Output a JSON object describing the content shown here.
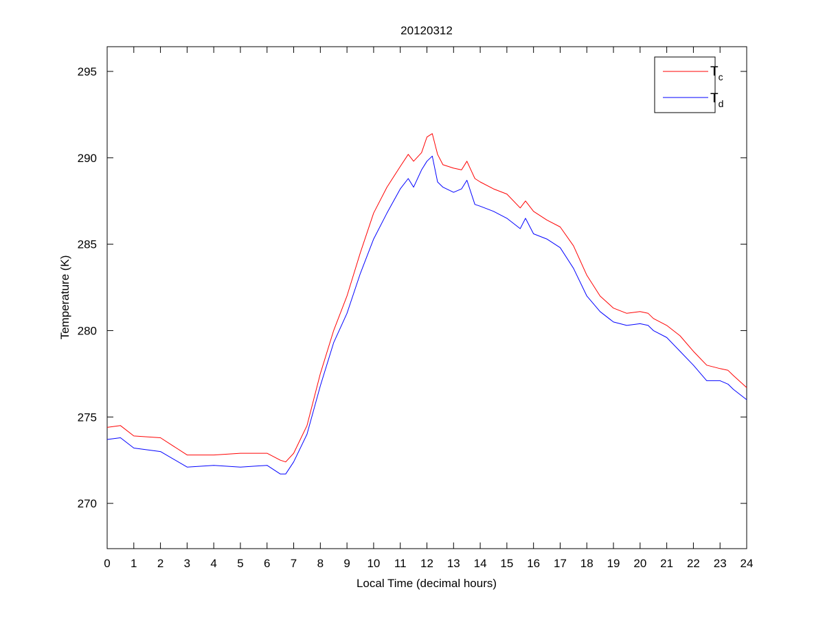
{
  "chart_data": {
    "type": "line",
    "title": "20120312",
    "xlabel": "Local Time (decimal hours)",
    "ylabel": "Temperature (K)",
    "xlim": [
      0,
      24
    ],
    "ylim": [
      267.38,
      296.43
    ],
    "xticks": [
      "0",
      "1",
      "2",
      "3",
      "4",
      "5",
      "6",
      "7",
      "8",
      "9",
      "10",
      "11",
      "12",
      "13",
      "14",
      "15",
      "16",
      "17",
      "18",
      "19",
      "20",
      "21",
      "22",
      "23",
      "24"
    ],
    "yticks": [
      "270",
      "275",
      "280",
      "285",
      "290",
      "295"
    ],
    "grid": false,
    "legend_position": "top-right",
    "x": [
      0,
      0.5,
      1,
      2,
      3,
      4,
      5,
      6,
      6.5,
      6.7,
      7,
      7.5,
      8,
      8.5,
      9,
      9.5,
      10,
      10.5,
      11,
      11.3,
      11.5,
      11.8,
      12,
      12.2,
      12.4,
      12.6,
      13,
      13.3,
      13.5,
      13.8,
      14,
      14.5,
      15,
      15.5,
      15.7,
      16,
      16.5,
      17,
      17.5,
      18,
      18.5,
      19,
      19.5,
      20,
      20.3,
      20.5,
      21,
      21.5,
      22,
      22.5,
      23,
      23.3,
      23.5,
      24
    ],
    "series": [
      {
        "name": "T",
        "subscript": "c",
        "color": "#ff0000",
        "values": [
          274.4,
          274.5,
          273.9,
          273.8,
          272.8,
          272.8,
          272.9,
          272.9,
          272.5,
          272.4,
          272.9,
          274.5,
          277.5,
          280.0,
          282.0,
          284.5,
          286.8,
          288.3,
          289.5,
          290.2,
          289.8,
          290.3,
          291.2,
          291.4,
          290.2,
          289.6,
          289.4,
          289.3,
          289.8,
          288.8,
          288.6,
          288.2,
          287.9,
          287.1,
          287.5,
          286.9,
          286.4,
          286.0,
          284.9,
          283.2,
          282.0,
          281.3,
          281.0,
          281.1,
          281.0,
          280.7,
          280.3,
          279.7,
          278.8,
          278.0,
          277.8,
          277.7,
          277.4,
          276.7
        ]
      },
      {
        "name": "T",
        "subscript": "d",
        "color": "#0000ff",
        "values": [
          273.7,
          273.8,
          273.2,
          273.0,
          272.1,
          272.2,
          272.1,
          272.2,
          271.7,
          271.7,
          272.4,
          274.0,
          276.8,
          279.3,
          281.0,
          283.3,
          285.3,
          286.8,
          288.2,
          288.8,
          288.3,
          289.3,
          289.8,
          290.1,
          288.6,
          288.3,
          288.0,
          288.2,
          288.7,
          287.3,
          287.2,
          286.9,
          286.5,
          285.9,
          286.5,
          285.6,
          285.3,
          284.8,
          283.6,
          282.0,
          281.1,
          280.5,
          280.3,
          280.4,
          280.3,
          280.0,
          279.6,
          278.8,
          278.0,
          277.1,
          277.1,
          276.9,
          276.6,
          276.0
        ]
      }
    ]
  }
}
